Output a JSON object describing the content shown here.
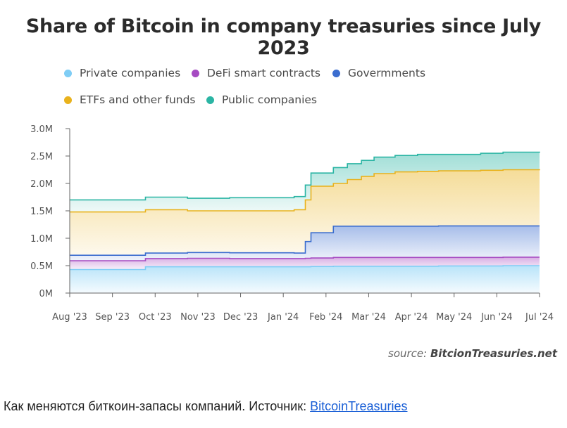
{
  "chart_data": {
    "type": "area",
    "stacked": true,
    "title": "Share of Bitcoin in company treasuries since July 2023",
    "xlabel": "",
    "ylabel": "",
    "x_ticks": [
      "Aug '23",
      "Sep '23",
      "Oct '23",
      "Nov '23",
      "Dec '23",
      "Jan '24",
      "Feb '24",
      "Mar '24",
      "Apr '24",
      "May '24",
      "Jun '24",
      "Jul '24"
    ],
    "y_ticks": [
      "0M",
      "0.5M",
      "1.0M",
      "1.5M",
      "2.0M",
      "2.5M",
      "3.0M"
    ],
    "ylim": [
      0,
      3000000
    ],
    "grid": false,
    "legend_position": "top",
    "x": [
      "2023-08-01",
      "2023-08-25",
      "2023-09-24",
      "2023-10-24",
      "2023-11-23",
      "2024-01-08",
      "2024-01-16",
      "2024-01-20",
      "2024-02-05",
      "2024-02-15",
      "2024-02-25",
      "2024-03-05",
      "2024-03-20",
      "2024-04-05",
      "2024-04-20",
      "2024-05-01",
      "2024-05-20",
      "2024-06-05",
      "2024-06-15",
      "2024-07-01"
    ],
    "series": [
      {
        "name": "Private companies",
        "color": "#7fcdf5",
        "cumulative": [
          430000,
          430000,
          480000,
          480000,
          480000,
          480000,
          480000,
          485000,
          490000,
          490000,
          490000,
          490000,
          490000,
          490000,
          495000,
          495000,
          495000,
          500000,
          500000,
          500000
        ]
      },
      {
        "name": "DeFi smart contracts",
        "color": "#a64bc2",
        "cumulative": [
          590000,
          590000,
          630000,
          635000,
          630000,
          630000,
          635000,
          640000,
          650000,
          650000,
          650000,
          650000,
          650000,
          650000,
          650000,
          650000,
          650000,
          655000,
          655000,
          655000
        ]
      },
      {
        "name": "Govermments",
        "color": "#3b6dcf",
        "cumulative": [
          690000,
          690000,
          730000,
          740000,
          735000,
          730000,
          940000,
          1100000,
          1220000,
          1220000,
          1220000,
          1220000,
          1220000,
          1220000,
          1225000,
          1225000,
          1225000,
          1225000,
          1225000,
          1225000
        ]
      },
      {
        "name": "ETFs and other funds",
        "color": "#e9b21c",
        "cumulative": [
          1480000,
          1480000,
          1520000,
          1500000,
          1500000,
          1520000,
          1700000,
          1950000,
          2000000,
          2070000,
          2130000,
          2180000,
          2210000,
          2220000,
          2230000,
          2230000,
          2240000,
          2250000,
          2250000,
          2240000
        ]
      },
      {
        "name": "Public companies",
        "color": "#2bb5a4",
        "cumulative": [
          1700000,
          1700000,
          1750000,
          1730000,
          1740000,
          1760000,
          1970000,
          2190000,
          2290000,
          2360000,
          2420000,
          2480000,
          2510000,
          2530000,
          2530000,
          2530000,
          2550000,
          2570000,
          2570000,
          2560000
        ]
      }
    ]
  },
  "legend": [
    {
      "label": "Private companies",
      "color": "#7fcdf5"
    },
    {
      "label": "DeFi smart contracts",
      "color": "#a64bc2"
    },
    {
      "label": "Govermments",
      "color": "#3b6dcf"
    },
    {
      "label": "ETFs and other funds",
      "color": "#e9b21c"
    },
    {
      "label": "Public companies",
      "color": "#2bb5a4"
    }
  ],
  "source": {
    "prefix": "source:",
    "name": "BitcionTreasuries.net"
  },
  "caption": {
    "text": "Как меняются биткоин-запасы компаний. Источник: ",
    "link_text": "BitcoinTreasuries"
  }
}
